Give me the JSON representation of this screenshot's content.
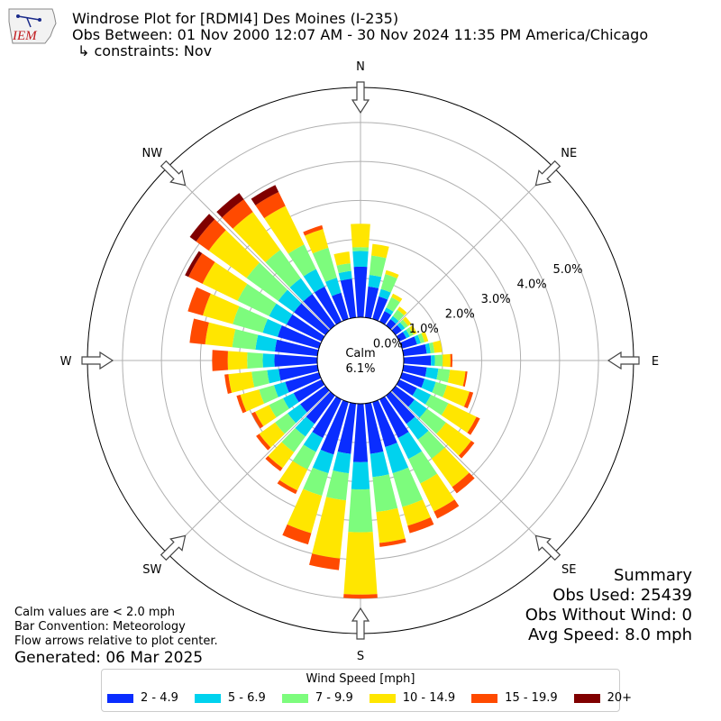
{
  "header": {
    "title": "Windrose Plot for [RDMI4] Des Moines (I-235)",
    "obs_between": "Obs Between: 01 Nov 2000 12:07 AM - 30 Nov 2024 11:35 PM America/Chicago",
    "constraints": "↳ constraints: Nov",
    "logo_text": "IEM"
  },
  "calm": {
    "label": "Calm",
    "value": "6.1%"
  },
  "summary": {
    "title": "Summary",
    "obs_used": "Obs Used: 25439",
    "obs_without_wind": "Obs Without Wind: 0",
    "avg_speed": "Avg Speed: 8.0 mph"
  },
  "notes": {
    "calm_note": "Calm values are < 2.0 mph",
    "bar_convention": "Bar Convention: Meteorology",
    "flow_arrows": "Flow arrows relative to plot center."
  },
  "generated": "Generated: 06 Mar 2025",
  "legend": {
    "title": "Wind Speed [mph]",
    "items": [
      {
        "label": "2 - 4.9",
        "color": "#0a2dff"
      },
      {
        "label": "5 - 6.9",
        "color": "#00d2ee"
      },
      {
        "label": "7 - 9.9",
        "color": "#7dfc7d"
      },
      {
        "label": "10 - 14.9",
        "color": "#ffe600"
      },
      {
        "label": "15 - 19.9",
        "color": "#ff4a00"
      },
      {
        "label": "20+",
        "color": "#800000"
      }
    ]
  },
  "chart_data": {
    "type": "windrose",
    "directions_deg": [
      0,
      10,
      20,
      30,
      40,
      50,
      60,
      70,
      80,
      90,
      100,
      110,
      120,
      130,
      140,
      150,
      160,
      170,
      180,
      190,
      200,
      210,
      220,
      230,
      240,
      250,
      260,
      270,
      280,
      290,
      300,
      310,
      320,
      330,
      340,
      350
    ],
    "compass_labels": [
      {
        "label": "N",
        "deg": 0
      },
      {
        "label": "NE",
        "deg": 45
      },
      {
        "label": "E",
        "deg": 90
      },
      {
        "label": "SE",
        "deg": 135
      },
      {
        "label": "S",
        "deg": 180
      },
      {
        "label": "SW",
        "deg": 225
      },
      {
        "label": "W",
        "deg": 270
      },
      {
        "label": "NW",
        "deg": 315
      }
    ],
    "radial_ticks": [
      "0.0%",
      "1.0%",
      "2.0%",
      "3.0%",
      "4.0%",
      "5.0%"
    ],
    "radial_max_percent": 5.9,
    "calm_percent": 6.1,
    "units": "percent of observations",
    "series": [
      {
        "name": "2 - 4.9",
        "values": [
          1.3,
          0.8,
          0.6,
          0.3,
          0.2,
          0.2,
          0.2,
          0.4,
          0.6,
          0.7,
          0.6,
          0.6,
          0.5,
          0.6,
          0.9,
          1.1,
          1.2,
          1.3,
          1.5,
          1.3,
          1.4,
          1.1,
          0.9,
          0.8,
          0.8,
          0.9,
          1.0,
          1.1,
          1.1,
          1.1,
          1.0,
          1.0,
          1.0,
          1.0,
          0.7,
          1.0
        ]
      },
      {
        "name": "5 - 6.9",
        "values": [
          0.4,
          0.3,
          0.2,
          0.1,
          0.1,
          0.1,
          0.1,
          0.1,
          0.1,
          0.1,
          0.3,
          0.3,
          0.4,
          0.4,
          0.5,
          0.6,
          0.7,
          0.6,
          0.7,
          0.5,
          0.5,
          0.4,
          0.4,
          0.4,
          0.3,
          0.3,
          0.3,
          0.3,
          0.5,
          0.4,
          0.5,
          0.5,
          0.5,
          0.5,
          0.4,
          0.2
        ]
      },
      {
        "name": "7 - 9.9",
        "values": [
          0.1,
          0.5,
          0.4,
          0.3,
          0.2,
          0.1,
          0.1,
          0.1,
          0.1,
          0.2,
          0.3,
          0.3,
          0.5,
          0.6,
          0.6,
          0.7,
          0.9,
          0.9,
          1.1,
          0.7,
          0.6,
          0.5,
          0.5,
          0.4,
          0.4,
          0.4,
          0.4,
          0.4,
          0.6,
          0.8,
          0.9,
          1.0,
          0.9,
          0.7,
          0.8,
          0.2
        ]
      },
      {
        "name": "10 - 14.9",
        "values": [
          0.6,
          0.3,
          0.1,
          0.1,
          0.1,
          0.1,
          0.1,
          0.1,
          0.2,
          0.2,
          0.4,
          0.6,
          0.8,
          0.8,
          0.9,
          0.8,
          0.5,
          0.8,
          1.6,
          1.5,
          1.0,
          0.6,
          0.5,
          0.5,
          0.4,
          0.5,
          0.6,
          0.5,
          0.7,
          0.8,
          1.0,
          1.2,
          1.2,
          1.1,
          0.5,
          0.3
        ]
      },
      {
        "name": "15 - 19.9",
        "values": [
          0,
          0,
          0,
          0,
          0,
          0,
          0,
          0,
          0,
          0.05,
          0.05,
          0.1,
          0.1,
          0.1,
          0.2,
          0.2,
          0.2,
          0.1,
          0.1,
          0.3,
          0.3,
          0.1,
          0.1,
          0.1,
          0.1,
          0.1,
          0.1,
          0.4,
          0.4,
          0.4,
          0.4,
          0.4,
          0.4,
          0.4,
          0.1,
          0
        ]
      },
      {
        "name": "20+",
        "values": [
          0,
          0,
          0,
          0,
          0,
          0,
          0,
          0,
          0,
          0,
          0,
          0,
          0,
          0,
          0,
          0,
          0,
          0,
          0,
          0,
          0,
          0,
          0,
          0,
          0,
          0,
          0,
          0,
          0,
          0,
          0.1,
          0.2,
          0.2,
          0.2,
          0,
          0
        ]
      }
    ]
  }
}
